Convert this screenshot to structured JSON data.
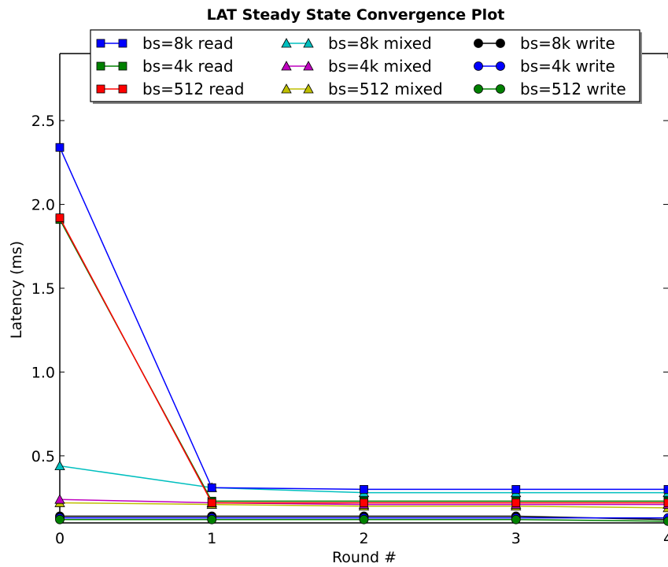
{
  "chart_data": {
    "type": "line",
    "title": "LAT Steady State Convergence Plot",
    "xlabel": "Round #",
    "ylabel": "Latency (ms)",
    "xlim": [
      0,
      4
    ],
    "ylim": [
      0.1,
      2.9
    ],
    "x": [
      0,
      1,
      2,
      3,
      4
    ],
    "x_ticks": [
      "0",
      "1",
      "2",
      "3",
      "4"
    ],
    "y_ticks": [
      0.5,
      1.0,
      1.5,
      2.0,
      2.5
    ],
    "y_tick_labels": [
      "0.5",
      "1.0",
      "1.5",
      "2.0",
      "2.5"
    ],
    "grid": false,
    "legend_position": "top",
    "series": [
      {
        "name": "bs=8k read",
        "color": "#0000ff",
        "marker": "square",
        "values": [
          2.34,
          0.31,
          0.3,
          0.3,
          0.3
        ]
      },
      {
        "name": "bs=4k read",
        "color": "#008000",
        "marker": "square",
        "values": [
          1.91,
          0.23,
          0.23,
          0.23,
          0.23
        ]
      },
      {
        "name": "bs=512 read",
        "color": "#ff0000",
        "marker": "square",
        "values": [
          1.92,
          0.22,
          0.22,
          0.22,
          0.22
        ]
      },
      {
        "name": "bs=8k mixed",
        "color": "#00bfbf",
        "marker": "triangle",
        "values": [
          0.44,
          0.31,
          0.28,
          0.28,
          0.28
        ]
      },
      {
        "name": "bs=4k mixed",
        "color": "#bf00bf",
        "marker": "triangle",
        "values": [
          0.24,
          0.22,
          0.21,
          0.21,
          0.21
        ]
      },
      {
        "name": "bs=512 mixed",
        "color": "#bfbf00",
        "marker": "triangle",
        "values": [
          0.22,
          0.21,
          0.2,
          0.2,
          0.19
        ]
      },
      {
        "name": "bs=8k write",
        "color": "#000000",
        "marker": "circle",
        "values": [
          0.14,
          0.14,
          0.14,
          0.14,
          0.12
        ]
      },
      {
        "name": "bs=4k write",
        "color": "#0000ff",
        "marker": "circle",
        "values": [
          0.13,
          0.13,
          0.13,
          0.13,
          0.13
        ]
      },
      {
        "name": "bs=512 write",
        "color": "#008000",
        "marker": "circle",
        "values": [
          0.12,
          0.12,
          0.12,
          0.12,
          0.11
        ]
      }
    ]
  }
}
